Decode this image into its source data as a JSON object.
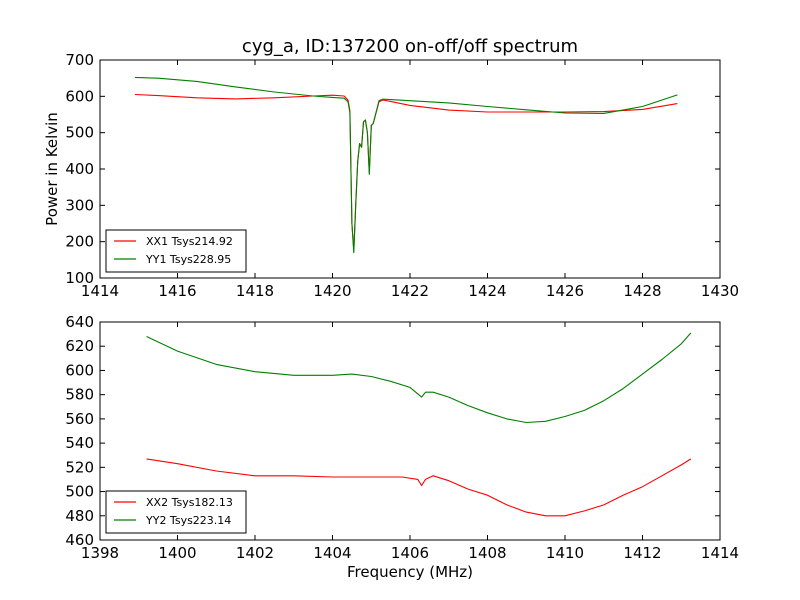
{
  "title": "cyg_a, ID:137200 on-off/off spectrum",
  "chart_data": [
    {
      "type": "line",
      "title": "cyg_a, ID:137200 on-off/off spectrum",
      "xlabel": "",
      "ylabel": "Power in Kelvin",
      "xlim": [
        1414,
        1430
      ],
      "ylim": [
        100,
        700
      ],
      "xticks": [
        1414,
        1416,
        1418,
        1420,
        1422,
        1424,
        1426,
        1428,
        1430
      ],
      "yticks": [
        100,
        200,
        300,
        400,
        500,
        600,
        700
      ],
      "legend_position": "lower-left",
      "series": [
        {
          "name": "XX1 Tsys214.92",
          "color": "#ff0000",
          "x": [
            1414.9,
            1415.5,
            1416.5,
            1417.5,
            1418.5,
            1419.5,
            1420.0,
            1420.3,
            1420.4,
            1420.45,
            1420.5,
            1420.55,
            1420.6,
            1420.65,
            1420.7,
            1420.75,
            1420.8,
            1420.85,
            1420.9,
            1420.95,
            1421.0,
            1421.05,
            1421.1,
            1421.2,
            1421.3,
            1421.5,
            1422.0,
            1423.0,
            1424.0,
            1425.0,
            1426.0,
            1427.0,
            1428.0,
            1428.9
          ],
          "y": [
            605,
            602,
            596,
            593,
            596,
            601,
            603,
            601,
            590,
            560,
            250,
            175,
            300,
            420,
            470,
            460,
            530,
            535,
            500,
            390,
            520,
            525,
            545,
            585,
            590,
            586,
            575,
            562,
            557,
            557,
            557,
            558,
            564,
            580
          ]
        },
        {
          "name": "YY1 Tsys228.95",
          "color": "#008000",
          "x": [
            1414.9,
            1415.5,
            1416.5,
            1417.5,
            1418.5,
            1419.5,
            1420.0,
            1420.3,
            1420.4,
            1420.45,
            1420.5,
            1420.55,
            1420.6,
            1420.65,
            1420.7,
            1420.75,
            1420.8,
            1420.85,
            1420.9,
            1420.95,
            1421.0,
            1421.05,
            1421.1,
            1421.2,
            1421.3,
            1421.5,
            1422.0,
            1423.0,
            1424.0,
            1425.0,
            1426.0,
            1427.0,
            1428.0,
            1428.9
          ],
          "y": [
            652,
            650,
            641,
            626,
            612,
            601,
            597,
            595,
            585,
            555,
            250,
            170,
            300,
            420,
            470,
            460,
            530,
            535,
            500,
            385,
            520,
            525,
            545,
            588,
            592,
            591,
            588,
            582,
            572,
            563,
            554,
            553,
            572,
            604
          ]
        }
      ]
    },
    {
      "type": "line",
      "title": "",
      "xlabel": "Frequency (MHz)",
      "ylabel": "",
      "xlim": [
        1398,
        1414
      ],
      "ylim": [
        460,
        640
      ],
      "xticks": [
        1398,
        1400,
        1402,
        1404,
        1406,
        1408,
        1410,
        1412,
        1414
      ],
      "yticks": [
        460,
        480,
        500,
        520,
        540,
        560,
        580,
        600,
        620,
        640
      ],
      "legend_position": "lower-left",
      "series": [
        {
          "name": "XX2 Tsys182.13",
          "color": "#ff0000",
          "x": [
            1399.2,
            1400.0,
            1401.0,
            1402.0,
            1403.0,
            1404.0,
            1405.0,
            1405.8,
            1406.2,
            1406.3,
            1406.4,
            1406.6,
            1407.0,
            1407.5,
            1408.0,
            1408.5,
            1409.0,
            1409.5,
            1410.0,
            1410.5,
            1411.0,
            1411.5,
            1412.0,
            1412.5,
            1413.0,
            1413.25
          ],
          "y": [
            527,
            523,
            517,
            513,
            513,
            512,
            512,
            512,
            510,
            505,
            510,
            513,
            509,
            502,
            497,
            489,
            483,
            480,
            480,
            484,
            489,
            497,
            504,
            513,
            522,
            527
          ]
        },
        {
          "name": "YY2 Tsys223.14",
          "color": "#008000",
          "x": [
            1399.2,
            1400.0,
            1401.0,
            1402.0,
            1403.0,
            1404.0,
            1404.5,
            1405.0,
            1405.5,
            1406.0,
            1406.3,
            1406.4,
            1406.6,
            1407.0,
            1407.5,
            1408.0,
            1408.5,
            1409.0,
            1409.5,
            1410.0,
            1410.5,
            1411.0,
            1411.5,
            1412.0,
            1412.5,
            1413.0,
            1413.25
          ],
          "y": [
            628,
            616,
            605,
            599,
            596,
            596,
            597,
            595,
            591,
            586,
            578,
            582,
            582,
            578,
            571,
            565,
            560,
            557,
            558,
            562,
            567,
            575,
            585,
            597,
            609,
            622,
            631
          ]
        }
      ]
    }
  ]
}
